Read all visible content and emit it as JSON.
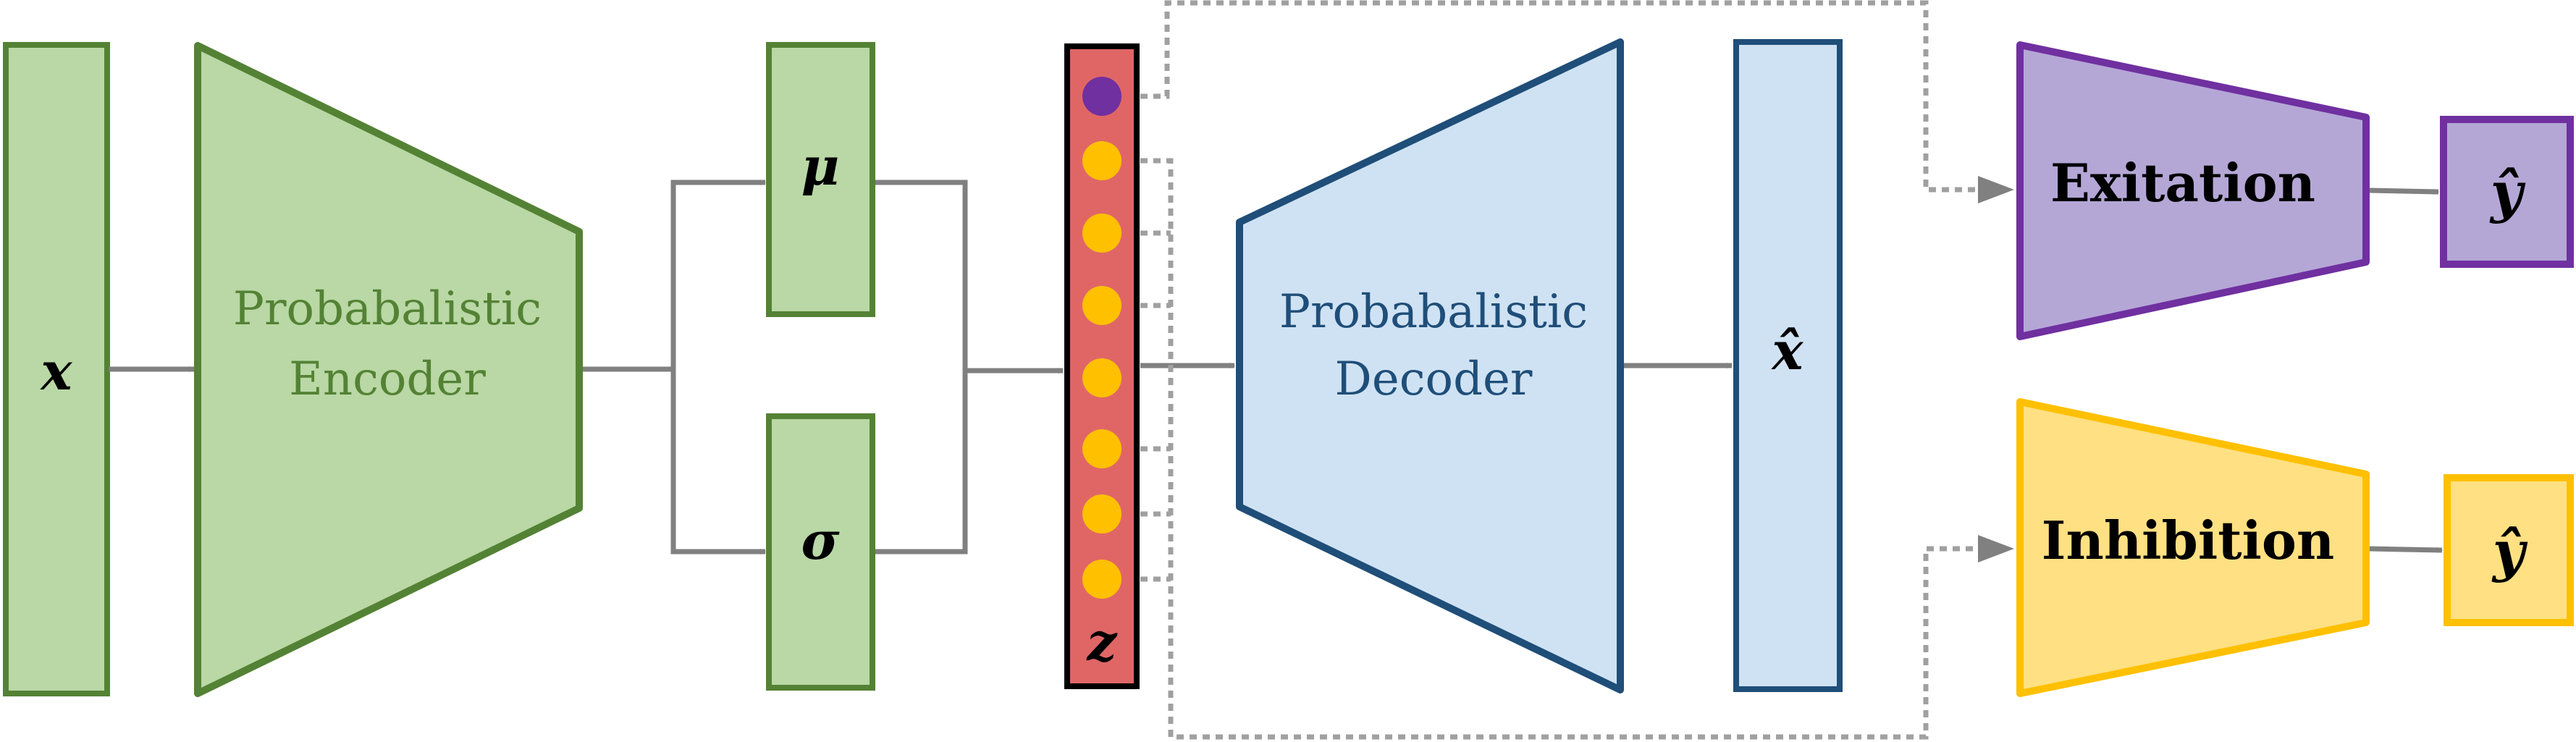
{
  "labels": {
    "input": "x",
    "encoder_line1": "Probabalistic",
    "encoder_line2": "Encoder",
    "mu": "μ",
    "sigma": "σ",
    "latent": "z",
    "decoder_line1": "Probabalistic",
    "decoder_line2": "Decoder",
    "reconstruction": "x̂",
    "excitation": "Exitation",
    "inhibition": "Inhibition",
    "prediction_top": "ŷ",
    "prediction_bottom": "ŷ"
  },
  "colors": {
    "green_fill": "#b9d8a5",
    "green_stroke": "#548235",
    "green_text": "#548235",
    "red_fill": "#e06666",
    "latent_purple": "#7030a0",
    "latent_yellow": "#ffc000",
    "blue_fill": "#cfe2f3",
    "blue_stroke": "#1f4e79",
    "blue_text": "#1f4e79",
    "purple_fill": "#b4a7d6",
    "purple_stroke": "#7030a0",
    "yellow_fill": "#ffe082",
    "yellow_stroke": "#ffc000",
    "arrow": "#808080"
  }
}
